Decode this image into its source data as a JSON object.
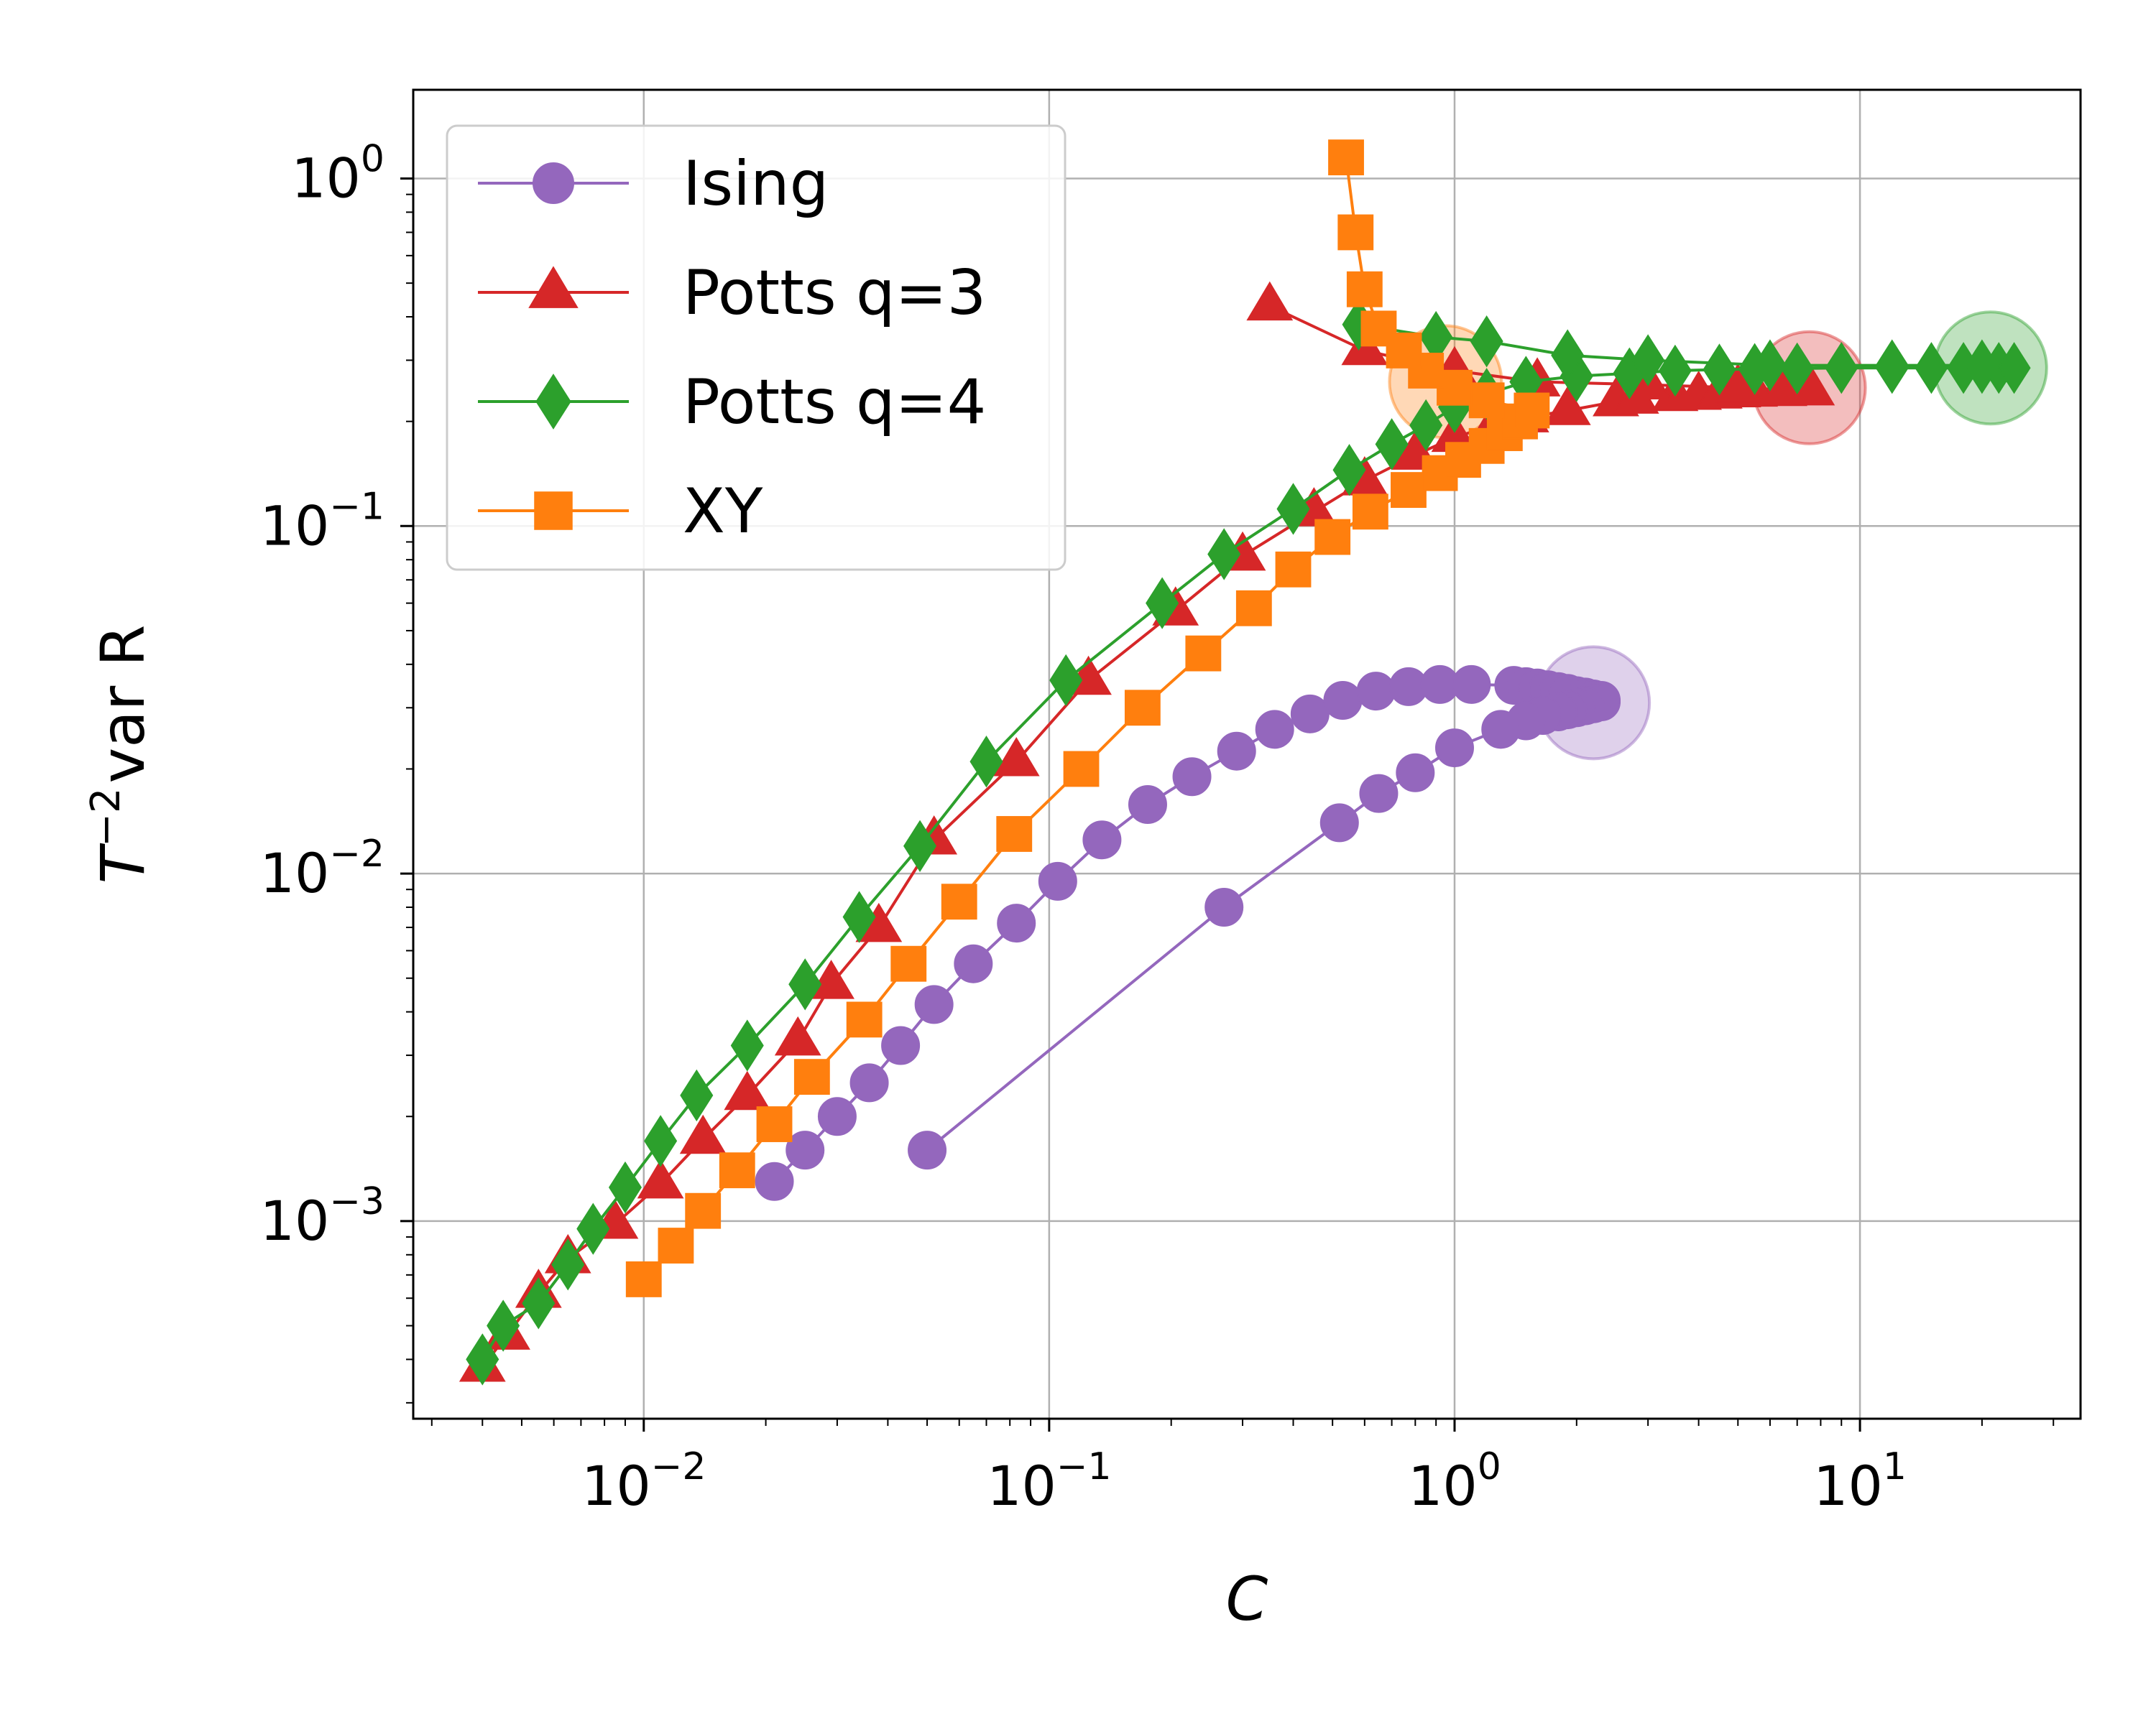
{
  "chart_data": {
    "type": "scatter",
    "title": "",
    "xlabel": "C",
    "ylabel_prefix": "T",
    "ylabel_exponent": "−2",
    "ylabel_suffix": "var R",
    "xscale": "log",
    "yscale": "log",
    "xlim": [
      0.0027,
      35
    ],
    "ylim": [
      0.00027,
      1.8
    ],
    "grid": true,
    "legend_position": "upper-left",
    "x_ticks": [
      {
        "value": 0.01,
        "base": "10",
        "exp": "−2"
      },
      {
        "value": 0.1,
        "base": "10",
        "exp": "−1"
      },
      {
        "value": 1,
        "base": "10",
        "exp": "0"
      },
      {
        "value": 10,
        "base": "10",
        "exp": "1"
      }
    ],
    "y_ticks": [
      {
        "value": 0.001,
        "base": "10",
        "exp": "−3"
      },
      {
        "value": 0.01,
        "base": "10",
        "exp": "−2"
      },
      {
        "value": 0.1,
        "base": "10",
        "exp": "−1"
      },
      {
        "value": 1,
        "base": "10",
        "exp": "0"
      }
    ],
    "series": [
      {
        "name": "Ising",
        "color": "#9467bd",
        "marker": "circle",
        "highlight": {
          "x": 2.2,
          "y": 0.031
        },
        "points": [
          [
            0.021,
            0.0013
          ],
          [
            0.025,
            0.0016
          ],
          [
            0.03,
            0.002
          ],
          [
            0.036,
            0.0025
          ],
          [
            0.043,
            0.0032
          ],
          [
            0.052,
            0.0042
          ],
          [
            0.065,
            0.0055
          ],
          [
            0.083,
            0.0072
          ],
          [
            0.105,
            0.0095
          ],
          [
            0.135,
            0.0125
          ],
          [
            0.175,
            0.0158
          ],
          [
            0.225,
            0.019
          ],
          [
            0.29,
            0.0225
          ],
          [
            0.36,
            0.026
          ],
          [
            0.44,
            0.0288
          ],
          [
            0.53,
            0.0315
          ],
          [
            0.64,
            0.0335
          ],
          [
            0.77,
            0.0345
          ],
          [
            0.92,
            0.035
          ],
          [
            1.1,
            0.035
          ],
          [
            1.4,
            0.0348
          ],
          [
            1.5,
            0.0345
          ],
          [
            1.6,
            0.0342
          ],
          [
            1.7,
            0.0338
          ],
          [
            1.8,
            0.0334
          ],
          [
            1.9,
            0.033
          ],
          [
            2.0,
            0.0325
          ],
          [
            2.1,
            0.0322
          ],
          [
            2.2,
            0.0318
          ],
          [
            2.3,
            0.0315
          ],
          [
            2.3,
            0.0312
          ],
          [
            2.2,
            0.0308
          ],
          [
            2.1,
            0.0304
          ],
          [
            2.0,
            0.03
          ],
          [
            1.9,
            0.0296
          ],
          [
            1.8,
            0.0292
          ],
          [
            1.65,
            0.0285
          ],
          [
            1.5,
            0.0275
          ],
          [
            1.3,
            0.026
          ],
          [
            1.0,
            0.023
          ],
          [
            0.8,
            0.0195
          ],
          [
            0.65,
            0.017
          ],
          [
            0.52,
            0.014
          ],
          [
            0.27,
            0.008
          ],
          [
            0.05,
            0.0016
          ]
        ]
      },
      {
        "name": "Potts q=3",
        "color": "#d62728",
        "marker": "triangle",
        "highlight": {
          "x": 7.5,
          "y": 0.25
        },
        "points": [
          [
            0.004,
            0.00038
          ],
          [
            0.0046,
            0.00047
          ],
          [
            0.0055,
            0.00062
          ],
          [
            0.0065,
            0.00078
          ],
          [
            0.0085,
            0.00098
          ],
          [
            0.011,
            0.00128
          ],
          [
            0.014,
            0.00172
          ],
          [
            0.018,
            0.0023
          ],
          [
            0.024,
            0.0033
          ],
          [
            0.029,
            0.0048
          ],
          [
            0.038,
            0.007
          ],
          [
            0.052,
            0.0125
          ],
          [
            0.083,
            0.021
          ],
          [
            0.125,
            0.036
          ],
          [
            0.205,
            0.057
          ],
          [
            0.3,
            0.082
          ],
          [
            0.45,
            0.11
          ],
          [
            0.6,
            0.135
          ],
          [
            0.8,
            0.16
          ],
          [
            1.0,
            0.18
          ],
          [
            1.25,
            0.195
          ],
          [
            1.5,
            0.205
          ],
          [
            1.9,
            0.215
          ],
          [
            2.5,
            0.228
          ],
          [
            2.8,
            0.232
          ],
          [
            3.5,
            0.236
          ],
          [
            4.0,
            0.238
          ],
          [
            4.5,
            0.24
          ],
          [
            5.0,
            0.242
          ],
          [
            5.5,
            0.243
          ],
          [
            6.5,
            0.244
          ],
          [
            7.6,
            0.245
          ],
          [
            5.0,
            0.25
          ],
          [
            3.0,
            0.255
          ],
          [
            1.6,
            0.26
          ],
          [
            1.0,
            0.28
          ],
          [
            0.6,
            0.32
          ],
          [
            0.35,
            0.43
          ]
        ]
      },
      {
        "name": "Potts q=4",
        "color": "#2ca02c",
        "marker": "diamond",
        "highlight": {
          "x": 21,
          "y": 0.285
        },
        "points": [
          [
            0.004,
            0.0004
          ],
          [
            0.0045,
            0.0005
          ],
          [
            0.0055,
            0.00058
          ],
          [
            0.0065,
            0.00075
          ],
          [
            0.0075,
            0.00095
          ],
          [
            0.009,
            0.00125
          ],
          [
            0.011,
            0.0017
          ],
          [
            0.0135,
            0.0023
          ],
          [
            0.018,
            0.0032
          ],
          [
            0.025,
            0.0048
          ],
          [
            0.034,
            0.0075
          ],
          [
            0.048,
            0.012
          ],
          [
            0.07,
            0.021
          ],
          [
            0.11,
            0.036
          ],
          [
            0.19,
            0.06
          ],
          [
            0.27,
            0.083
          ],
          [
            0.4,
            0.112
          ],
          [
            0.55,
            0.145
          ],
          [
            0.7,
            0.172
          ],
          [
            0.85,
            0.195
          ],
          [
            1.0,
            0.22
          ],
          [
            1.2,
            0.24
          ],
          [
            1.5,
            0.26
          ],
          [
            2.0,
            0.27
          ],
          [
            2.7,
            0.275
          ],
          [
            3.5,
            0.28
          ],
          [
            4.5,
            0.282
          ],
          [
            5.5,
            0.283
          ],
          [
            7.0,
            0.284
          ],
          [
            9.0,
            0.285
          ],
          [
            12.0,
            0.285
          ],
          [
            15.0,
            0.285
          ],
          [
            18.0,
            0.285
          ],
          [
            20.0,
            0.285
          ],
          [
            22.0,
            0.285
          ],
          [
            24.0,
            0.285
          ],
          [
            20.0,
            0.29
          ],
          [
            12.0,
            0.29
          ],
          [
            6.0,
            0.29
          ],
          [
            3.0,
            0.3
          ],
          [
            1.9,
            0.31
          ],
          [
            1.2,
            0.34
          ],
          [
            0.9,
            0.35
          ],
          [
            0.58,
            0.38
          ]
        ]
      },
      {
        "name": "XY",
        "color": "#ff7f0e",
        "marker": "square",
        "highlight": {
          "x": 0.95,
          "y": 0.26
        },
        "points": [
          [
            0.01,
            0.00068
          ],
          [
            0.012,
            0.00085
          ],
          [
            0.014,
            0.00107
          ],
          [
            0.017,
            0.0014
          ],
          [
            0.021,
            0.0019
          ],
          [
            0.026,
            0.0026
          ],
          [
            0.035,
            0.0038
          ],
          [
            0.045,
            0.0055
          ],
          [
            0.06,
            0.0083
          ],
          [
            0.082,
            0.013
          ],
          [
            0.12,
            0.02
          ],
          [
            0.17,
            0.03
          ],
          [
            0.24,
            0.043
          ],
          [
            0.32,
            0.058
          ],
          [
            0.4,
            0.075
          ],
          [
            0.5,
            0.093
          ],
          [
            0.62,
            0.11
          ],
          [
            0.77,
            0.127
          ],
          [
            0.92,
            0.142
          ],
          [
            1.05,
            0.155
          ],
          [
            1.2,
            0.17
          ],
          [
            1.33,
            0.185
          ],
          [
            1.45,
            0.2
          ],
          [
            1.55,
            0.215
          ],
          [
            1.2,
            0.23
          ],
          [
            1.0,
            0.25
          ],
          [
            0.85,
            0.28
          ],
          [
            0.75,
            0.32
          ],
          [
            0.65,
            0.37
          ],
          [
            0.6,
            0.48
          ],
          [
            0.57,
            0.7
          ],
          [
            0.54,
            1.15
          ]
        ]
      }
    ]
  }
}
